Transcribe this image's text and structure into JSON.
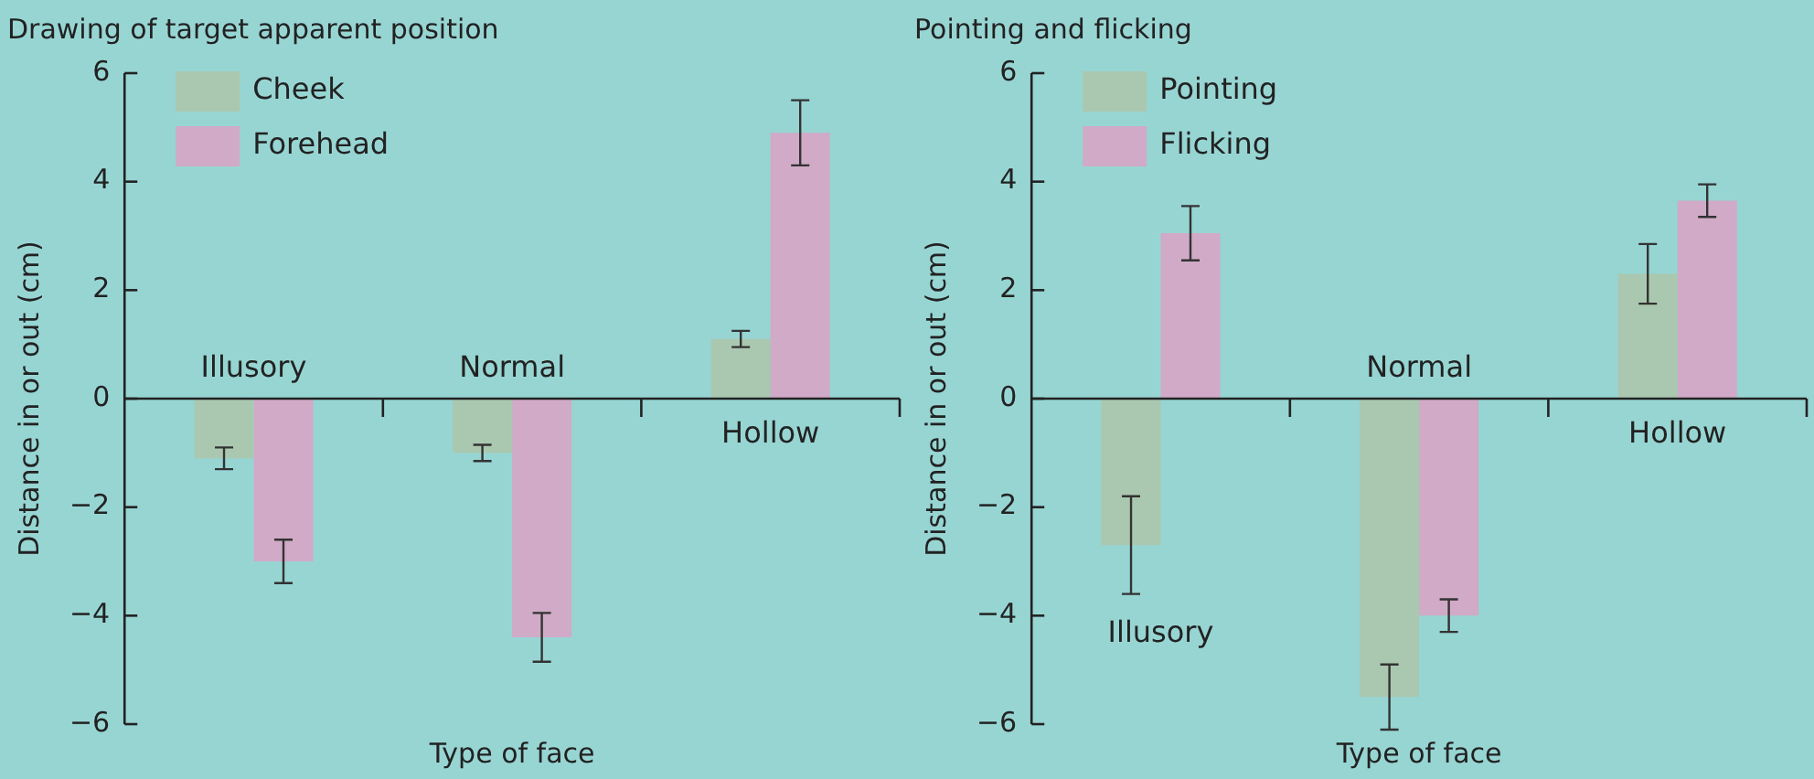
{
  "chart_data": [
    {
      "type": "bar",
      "title": "Drawing of target apparent position",
      "xlabel": "Type of face",
      "ylabel": "Distance in or out (cm)",
      "categories": [
        "Illusory",
        "Normal",
        "Hollow"
      ],
      "series": [
        {
          "name": "Cheek",
          "color": "#aac8b0",
          "values": [
            -1.1,
            -1.0,
            1.1
          ],
          "errors": [
            0.2,
            0.15,
            0.15
          ]
        },
        {
          "name": "Forehead",
          "color": "#d0aac6",
          "values": [
            -3.0,
            -4.4,
            4.9
          ],
          "errors": [
            0.4,
            0.45,
            0.6
          ]
        }
      ],
      "ylim": [
        -6,
        6
      ],
      "yticks": [
        {
          "value": -6,
          "label": "−6"
        },
        {
          "value": -4,
          "label": "−4"
        },
        {
          "value": -2,
          "label": "−2"
        },
        0,
        2,
        4,
        6
      ],
      "legend": "top left",
      "grid": false
    },
    {
      "type": "bar",
      "title": "Pointing and flicking",
      "xlabel": "Type of face",
      "ylabel": "Distance in or out (cm)",
      "categories": [
        "Illusory",
        "Normal",
        "Hollow"
      ],
      "series": [
        {
          "name": "Pointing",
          "color": "#aac8b0",
          "values": [
            -2.7,
            -5.5,
            2.3
          ],
          "errors": [
            0.9,
            0.6,
            0.55
          ]
        },
        {
          "name": "Flicking",
          "color": "#d0aac6",
          "values": [
            3.05,
            -4.0,
            3.65
          ],
          "errors": [
            0.5,
            0.3,
            0.3
          ]
        }
      ],
      "ylim": [
        -6,
        6
      ],
      "yticks": [
        {
          "value": -6,
          "label": "−6"
        },
        {
          "value": -4,
          "label": "−4"
        },
        {
          "value": -2,
          "label": "−2"
        },
        0,
        2,
        4,
        6
      ],
      "legend": "top left"
    }
  ]
}
